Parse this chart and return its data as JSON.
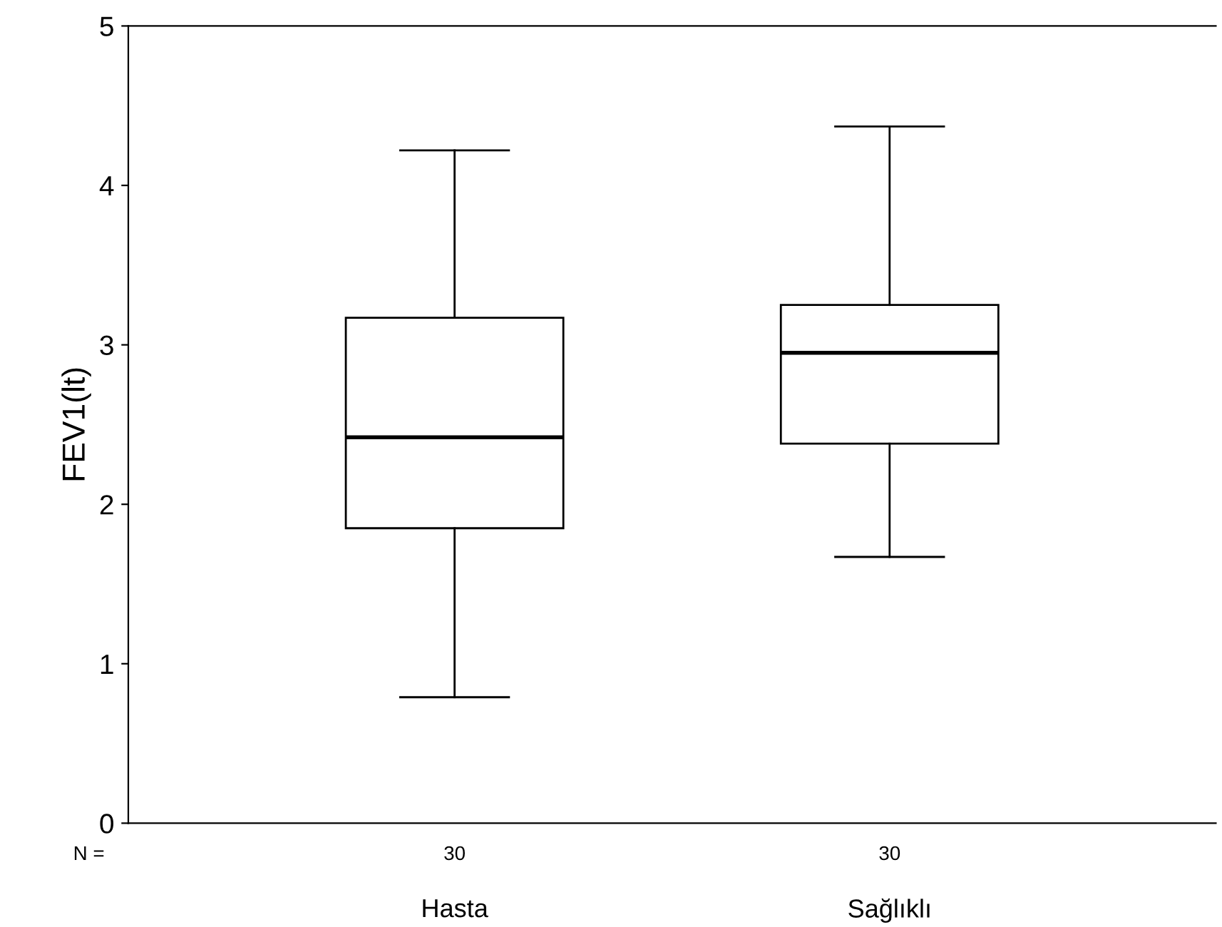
{
  "chart_data": {
    "type": "box",
    "ylabel": "FEV1(lt)",
    "categories": [
      "Hasta",
      "Sağlıklı"
    ],
    "boxes": [
      {
        "low": 0.79,
        "q1": 1.85,
        "median": 2.42,
        "q3": 3.17,
        "high": 4.22
      },
      {
        "low": 1.67,
        "q1": 2.38,
        "median": 2.95,
        "q3": 3.25,
        "high": 4.37
      }
    ],
    "color": "#ffffff",
    "ylim": [
      0,
      5
    ],
    "yticks": [
      0,
      1,
      2,
      3,
      4,
      5
    ],
    "grid": false,
    "annotations": [
      "N =",
      "30",
      "30"
    ]
  }
}
